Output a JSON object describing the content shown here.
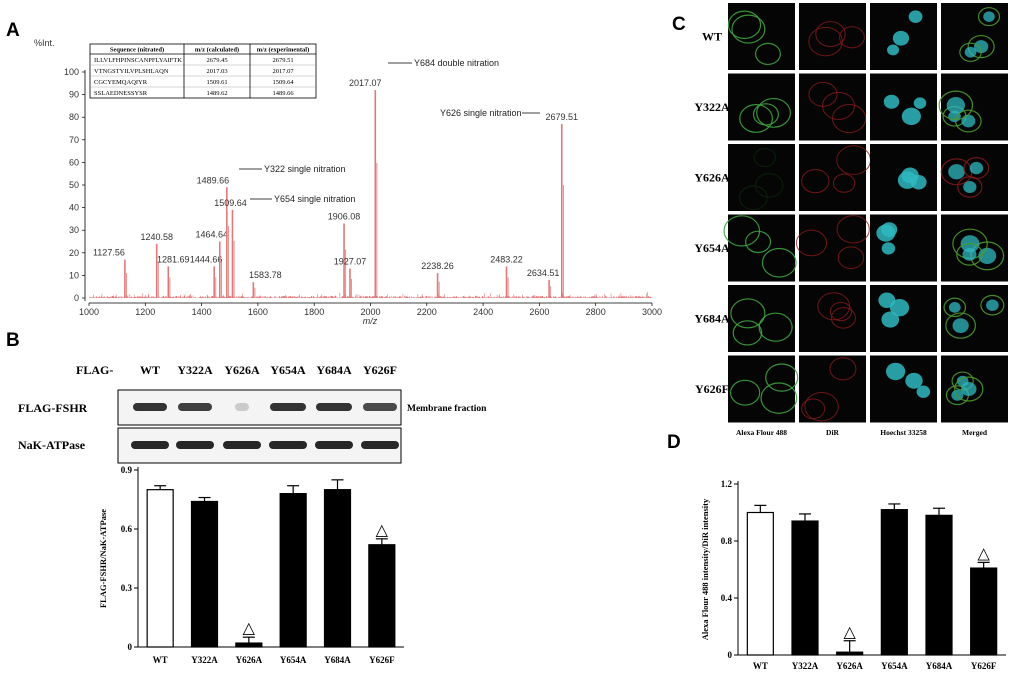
{
  "panels": {
    "A": {
      "letter": "A",
      "y_unit": "%Int.",
      "x_unit": "m/z",
      "table": {
        "headers": [
          "Sequence (nitrated)",
          "m/z (calculated)",
          "m/z (experimental)"
        ],
        "rows": [
          [
            "ILLVLFHPINSCANPFLYAIFTK",
            "2679.45",
            "2679.51"
          ],
          [
            "VTNGSTYILVPLSHLAQN",
            "2017.03",
            "2017.07"
          ],
          [
            "CGCYEMQAQIYR",
            "1509.61",
            "1509.64"
          ],
          [
            "SSLAEDNESSYSR",
            "1489.62",
            "1489.66"
          ]
        ]
      },
      "annotations": {
        "y684": "Y684 double nitration",
        "y626": "Y626 single nitration",
        "y322": "Y322 single nitration",
        "y654": "Y654 single nitration"
      }
    },
    "B": {
      "letter": "B",
      "flag_prefix": "FLAG-",
      "lanes": [
        "WT",
        "Y322A",
        "Y626A",
        "Y654A",
        "Y684A",
        "Y626F"
      ],
      "blot_rows": [
        "FLAG-FSHR",
        "NaK-ATPase"
      ],
      "blot_note": "Membrane fraction",
      "triangle": "△"
    },
    "C": {
      "letter": "C",
      "rows": [
        "WT",
        "Y322A",
        "Y626A",
        "Y654A",
        "Y684A",
        "Y626F"
      ],
      "columns": [
        "Alexa Flour 488",
        "DiR",
        "Hoechst 33258",
        "Merged"
      ]
    },
    "D": {
      "letter": "D",
      "triangle": "△"
    }
  },
  "chart_data": [
    {
      "id": "A",
      "type": "line",
      "subtype": "mass-spectrum",
      "xlabel": "m/z",
      "ylabel": "%Int.",
      "xlim": [
        1000,
        3000
      ],
      "ylim": [
        0,
        100
      ],
      "xticks": [
        1000,
        1200,
        1400,
        1600,
        1800,
        2000,
        2200,
        2400,
        2600,
        2800,
        3000
      ],
      "yticks": [
        0,
        10,
        20,
        30,
        40,
        50,
        60,
        70,
        80,
        90,
        100
      ],
      "peaks": [
        {
          "mz": 1127.56,
          "intensity": 17,
          "label": "1127.56"
        },
        {
          "mz": 1240.58,
          "intensity": 24,
          "label": "1240.58"
        },
        {
          "mz": 1281.69,
          "intensity": 14,
          "label": "1281.69"
        },
        {
          "mz": 1444.66,
          "intensity": 14,
          "label": "1444.66"
        },
        {
          "mz": 1464.64,
          "intensity": 25,
          "label": "1464.64"
        },
        {
          "mz": 1489.66,
          "intensity": 49,
          "label": "1489.66"
        },
        {
          "mz": 1509.64,
          "intensity": 39,
          "label": "1509.64"
        },
        {
          "mz": 1583.78,
          "intensity": 7,
          "label": "1583.78"
        },
        {
          "mz": 1906.08,
          "intensity": 33,
          "label": "1906.08"
        },
        {
          "mz": 1927.07,
          "intensity": 13,
          "label": "1927.07"
        },
        {
          "mz": 2017.07,
          "intensity": 92,
          "label": "2017.07"
        },
        {
          "mz": 2238.26,
          "intensity": 11,
          "label": "2238.26"
        },
        {
          "mz": 2483.22,
          "intensity": 14,
          "label": "2483.22"
        },
        {
          "mz": 2634.51,
          "intensity": 8,
          "label": "2634.51"
        },
        {
          "mz": 2679.51,
          "intensity": 77,
          "label": "2679.51"
        }
      ]
    },
    {
      "id": "B",
      "type": "bar",
      "categories": [
        "WT",
        "Y322A",
        "Y626A",
        "Y654A",
        "Y684A",
        "Y626F"
      ],
      "values": [
        0.8,
        0.74,
        0.02,
        0.78,
        0.8,
        0.52
      ],
      "errors": [
        0.02,
        0.02,
        0.03,
        0.04,
        0.05,
        0.03
      ],
      "ylabel": "FLAG-FSHR/NaK-ATPase",
      "ylim": [
        0,
        0.9
      ],
      "yticks": [
        "0",
        "0.3",
        "0.6",
        "0.9"
      ],
      "ytick_values": [
        0,
        0.3,
        0.6,
        0.9
      ],
      "fill": [
        "white",
        "black",
        "black",
        "black",
        "black",
        "black"
      ],
      "marked": [
        "Y626A",
        "Y626F"
      ]
    },
    {
      "id": "D",
      "type": "bar",
      "categories": [
        "WT",
        "Y322A",
        "Y626A",
        "Y654A",
        "Y684A",
        "Y626F"
      ],
      "values": [
        1.0,
        0.94,
        0.02,
        1.02,
        0.98,
        0.61
      ],
      "errors": [
        0.05,
        0.05,
        0.08,
        0.04,
        0.05,
        0.04
      ],
      "ylabel": "Alexa Flour 488 intensity/DiR intensity",
      "ylim": [
        0,
        1.2
      ],
      "yticks": [
        "0",
        "0.4",
        "0.8",
        "1.2"
      ],
      "ytick_values": [
        0,
        0.4,
        0.8,
        1.2
      ],
      "fill": [
        "white",
        "black",
        "black",
        "black",
        "black",
        "black"
      ],
      "marked": [
        "Y626A",
        "Y626F"
      ]
    }
  ],
  "colors": {
    "spectrum": "#e07a7a",
    "green_channel": "#1f7a1f",
    "red_channel": "#7a1414",
    "cyan_channel": "#33cccc",
    "bar_filled": "#000000"
  }
}
